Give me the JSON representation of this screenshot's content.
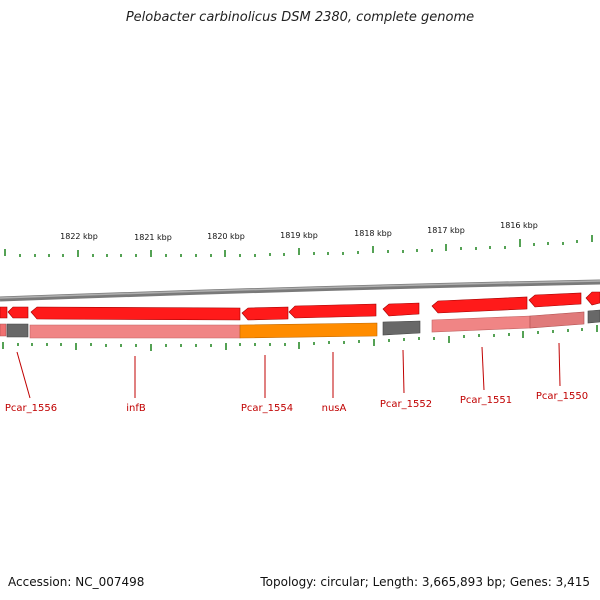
{
  "title": "Pelobacter carbinolicus DSM 2380, complete genome",
  "footer": {
    "accession": "Accession: NC_007498",
    "summary": "Topology: circular; Length: 3,665,893 bp; Genes: 3,415"
  },
  "colors": {
    "gene_forward": "#ff0000",
    "gene_reverse_light": "#f08080",
    "gene_highlight": "#ff8c00",
    "gene_gray": "#666666",
    "backbone": "#8a8a8a",
    "tick": "#2a8a2a",
    "label": "#c00000"
  },
  "scale": {
    "unit": "kbp",
    "ticks": [
      {
        "label": "1822 kbp"
      },
      {
        "label": "1821 kbp"
      },
      {
        "label": "1820 kbp"
      },
      {
        "label": "1819 kbp"
      },
      {
        "label": "1818 kbp"
      },
      {
        "label": "1817 kbp"
      },
      {
        "label": "1816 kbp"
      }
    ]
  },
  "genes": [
    {
      "label": "Pcar_1556"
    },
    {
      "label": "infB"
    },
    {
      "label": "Pcar_1554"
    },
    {
      "label": "nusA"
    },
    {
      "label": "Pcar_1552"
    },
    {
      "label": "Pcar_1551"
    },
    {
      "label": "Pcar_1550"
    }
  ]
}
